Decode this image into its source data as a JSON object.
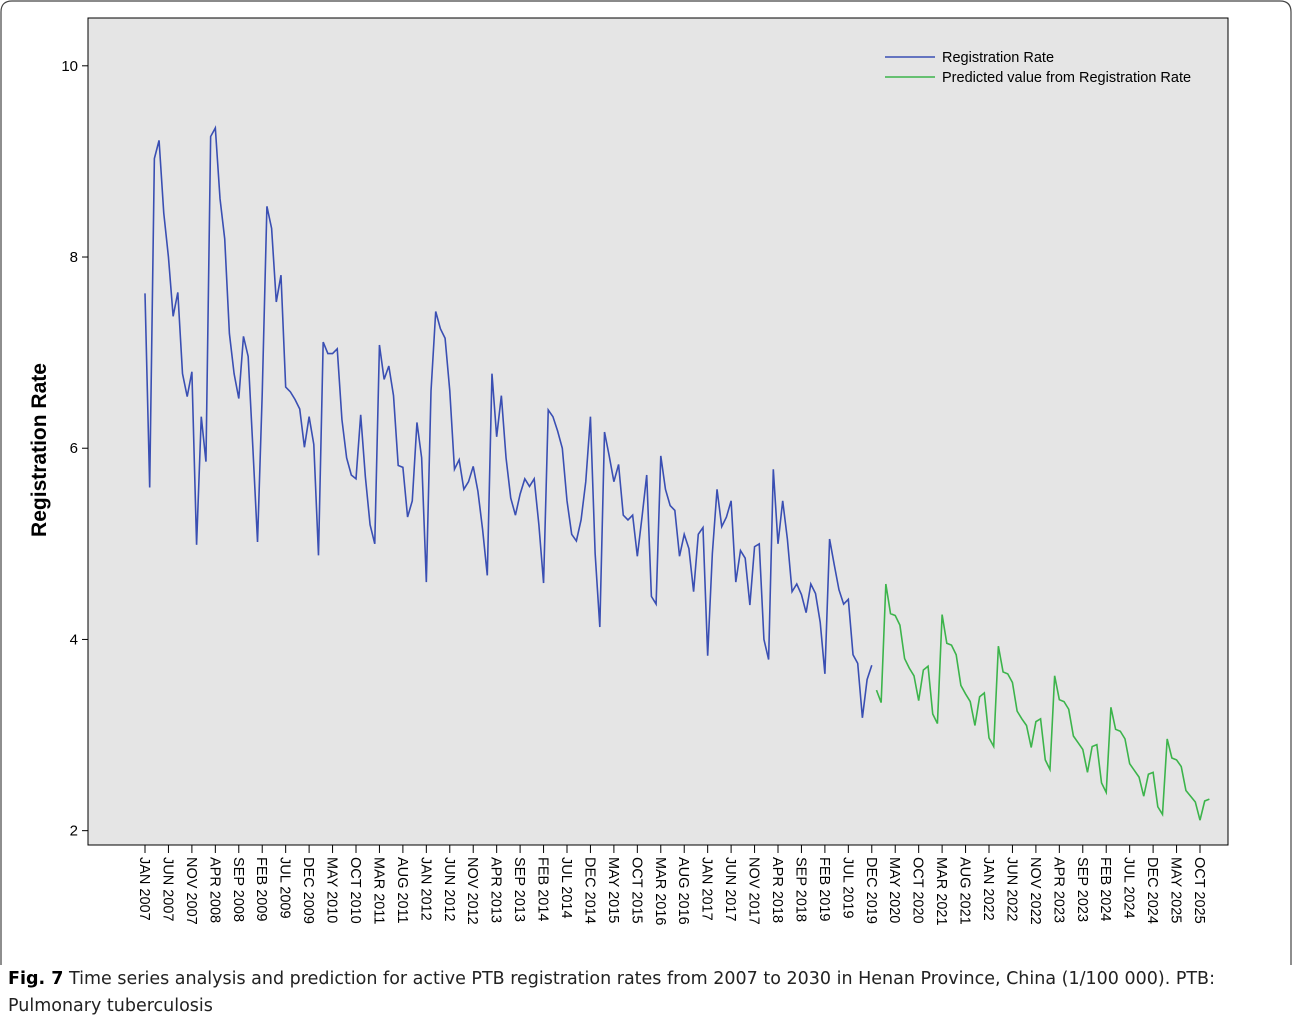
{
  "chart_data": {
    "type": "line",
    "y_label": "Registration Rate",
    "categories": [
      "JAN 2007",
      null,
      null,
      null,
      null,
      "JUN 2007",
      null,
      null,
      null,
      null,
      "NOV 2007",
      null,
      null,
      null,
      null,
      "APR 2008",
      null,
      null,
      null,
      null,
      "SEP 2008",
      null,
      null,
      null,
      null,
      "FEB 2009",
      null,
      null,
      null,
      null,
      "JUL 2009",
      null,
      null,
      null,
      null,
      "DEC 2009",
      null,
      null,
      null,
      null,
      "MAY 2010",
      null,
      null,
      null,
      null,
      "OCT 2010",
      null,
      null,
      null,
      null,
      "MAR 2011",
      null,
      null,
      null,
      null,
      "AUG 2011",
      null,
      null,
      null,
      null,
      "JAN 2012",
      null,
      null,
      null,
      null,
      "JUN 2012",
      null,
      null,
      null,
      null,
      "NOV 2012",
      null,
      null,
      null,
      null,
      "APR 2013",
      null,
      null,
      null,
      null,
      "SEP 2013",
      null,
      null,
      null,
      null,
      "FEB 2014",
      null,
      null,
      null,
      null,
      "JUL 2014",
      null,
      null,
      null,
      null,
      "DEC 2014",
      null,
      null,
      null,
      null,
      "MAY 2015",
      null,
      null,
      null,
      null,
      "OCT 2015",
      null,
      null,
      null,
      null,
      "MAR 2016",
      null,
      null,
      null,
      null,
      "AUG 2016",
      null,
      null,
      null,
      null,
      "JAN 2017",
      null,
      null,
      null,
      null,
      "JUN 2017",
      null,
      null,
      null,
      null,
      "NOV 2017",
      null,
      null,
      null,
      null,
      "APR 2018",
      null,
      null,
      null,
      null,
      "SEP 2018",
      null,
      null,
      null,
      null,
      "FEB 2019",
      null,
      null,
      null,
      null,
      "JUL 2019",
      null,
      null,
      null,
      null,
      "DEC 2019",
      null,
      null,
      null,
      null,
      "MAY 2020",
      null,
      null,
      null,
      null,
      "OCT 2020",
      null,
      null,
      null,
      null,
      "MAR 2021",
      null,
      null,
      null,
      null,
      "AUG 2021",
      null,
      null,
      null,
      null,
      "JAN 2022",
      null,
      null,
      null,
      null,
      "JUN 2022",
      null,
      null,
      null,
      null,
      "NOV 2022",
      null,
      null,
      null,
      null,
      "APR 2023",
      null,
      null,
      null,
      null,
      "SEP 2023",
      null,
      null,
      null,
      null,
      "FEB 2024",
      null,
      null,
      null,
      null,
      "JUL 2024",
      null,
      null,
      null,
      null,
      "DEC 2024",
      null,
      null,
      null,
      null,
      "MAY 2025",
      null,
      null,
      null,
      null,
      "OCT 2025",
      null,
      null
    ],
    "series": [
      {
        "name": "Registration Rate",
        "color": "#3a4fb3",
        "values": [
          7.62,
          5.59,
          9.03,
          9.22,
          8.46,
          8.0,
          7.38,
          7.63,
          6.78,
          6.54,
          6.8,
          4.99,
          6.33,
          5.86,
          9.26,
          9.35,
          8.61,
          8.19,
          7.2,
          6.78,
          6.52,
          7.17,
          6.96,
          6.01,
          5.02,
          6.57,
          8.53,
          8.3,
          7.53,
          7.81,
          6.64,
          6.59,
          6.51,
          6.41,
          6.01,
          6.33,
          6.04,
          4.88,
          7.11,
          6.99,
          6.99,
          7.04,
          6.3,
          5.9,
          5.72,
          5.68,
          6.35,
          5.7,
          5.2,
          5.0,
          7.08,
          6.72,
          6.86,
          6.55,
          5.82,
          5.8,
          5.28,
          5.45,
          6.27,
          5.9,
          4.6,
          6.6,
          7.43,
          7.25,
          7.15,
          6.6,
          5.78,
          5.88,
          5.57,
          5.65,
          5.81,
          5.55,
          5.15,
          4.67,
          6.78,
          6.12,
          6.55,
          5.9,
          5.48,
          5.3,
          5.52,
          5.68,
          5.6,
          5.68,
          5.2,
          4.59,
          6.4,
          6.33,
          6.18,
          6.0,
          5.45,
          5.1,
          5.03,
          5.25,
          5.65,
          6.33,
          4.9,
          4.13,
          6.17,
          5.92,
          5.65,
          5.83,
          5.3,
          5.25,
          5.3,
          4.87,
          5.28,
          5.72,
          4.45,
          4.37,
          5.92,
          5.57,
          5.4,
          5.35,
          4.87,
          5.1,
          4.95,
          4.5,
          5.1,
          5.17,
          3.83,
          4.9,
          5.57,
          5.18,
          5.28,
          5.45,
          4.6,
          4.93,
          4.85,
          4.36,
          4.97,
          5.0,
          4.0,
          3.79,
          5.78,
          5.0,
          5.45,
          5.05,
          4.5,
          4.58,
          4.47,
          4.28,
          4.58,
          4.48,
          4.18,
          3.64,
          5.05,
          4.78,
          4.52,
          4.37,
          4.42,
          3.84,
          3.75,
          3.18,
          3.58,
          3.73,
          null,
          null,
          null,
          null,
          null,
          null,
          null,
          null,
          null,
          null,
          null,
          null,
          null,
          null,
          null,
          null,
          null,
          null,
          null,
          null,
          null,
          null,
          null,
          null,
          null,
          null,
          null,
          null,
          null,
          null,
          null,
          null,
          null,
          null,
          null,
          null,
          null,
          null,
          null,
          null,
          null,
          null,
          null,
          null,
          null,
          null,
          null,
          null,
          null,
          null,
          null,
          null,
          null,
          null,
          null,
          null,
          null,
          null,
          null,
          null,
          null,
          null,
          null,
          null,
          null,
          null,
          null,
          null,
          null,
          null,
          null,
          null
        ]
      },
      {
        "name": "Predicted value from Registration Rate",
        "color": "#3cb44b",
        "values": [
          null,
          null,
          null,
          null,
          null,
          null,
          null,
          null,
          null,
          null,
          null,
          null,
          null,
          null,
          null,
          null,
          null,
          null,
          null,
          null,
          null,
          null,
          null,
          null,
          null,
          null,
          null,
          null,
          null,
          null,
          null,
          null,
          null,
          null,
          null,
          null,
          null,
          null,
          null,
          null,
          null,
          null,
          null,
          null,
          null,
          null,
          null,
          null,
          null,
          null,
          null,
          null,
          null,
          null,
          null,
          null,
          null,
          null,
          null,
          null,
          null,
          null,
          null,
          null,
          null,
          null,
          null,
          null,
          null,
          null,
          null,
          null,
          null,
          null,
          null,
          null,
          null,
          null,
          null,
          null,
          null,
          null,
          null,
          null,
          null,
          null,
          null,
          null,
          null,
          null,
          null,
          null,
          null,
          null,
          null,
          null,
          null,
          null,
          null,
          null,
          null,
          null,
          null,
          null,
          null,
          null,
          null,
          null,
          null,
          null,
          null,
          null,
          null,
          null,
          null,
          null,
          null,
          null,
          null,
          null,
          null,
          null,
          null,
          null,
          null,
          null,
          null,
          null,
          null,
          null,
          null,
          null,
          null,
          null,
          null,
          null,
          null,
          null,
          null,
          null,
          null,
          null,
          null,
          null,
          null,
          null,
          null,
          null,
          null,
          null,
          null,
          null,
          null,
          null,
          null,
          null,
          3.47,
          3.34,
          4.58,
          4.27,
          4.25,
          4.15,
          3.8,
          3.7,
          3.62,
          3.36,
          3.68,
          3.72,
          3.22,
          3.12,
          4.26,
          3.96,
          3.94,
          3.84,
          3.52,
          3.43,
          3.35,
          3.1,
          3.4,
          3.44,
          2.97,
          2.88,
          3.93,
          3.66,
          3.64,
          3.55,
          3.25,
          3.17,
          3.1,
          2.87,
          3.14,
          3.17,
          2.74,
          2.64,
          3.62,
          3.37,
          3.35,
          3.27,
          2.99,
          2.92,
          2.85,
          2.61,
          2.88,
          2.9,
          2.5,
          2.4,
          3.29,
          3.06,
          3.04,
          2.96,
          2.7,
          2.63,
          2.56,
          2.36,
          2.59,
          2.61,
          2.25,
          2.17,
          2.96,
          2.76,
          2.74,
          2.67,
          2.42,
          2.36,
          2.3,
          2.11,
          2.31,
          2.33
        ]
      }
    ],
    "ylim": [
      1.85,
      10.5
    ],
    "yticks": [
      2,
      4,
      6,
      8,
      10
    ],
    "legend": "top-right",
    "grid": false,
    "background": "#e5e5e5"
  },
  "caption": {
    "label": "Fig. 7",
    "text": "Time series analysis and prediction for active PTB registration rates from 2007 to 2030 in Henan Province, China (1/100 000). PTB: Pulmonary tuberculosis"
  }
}
